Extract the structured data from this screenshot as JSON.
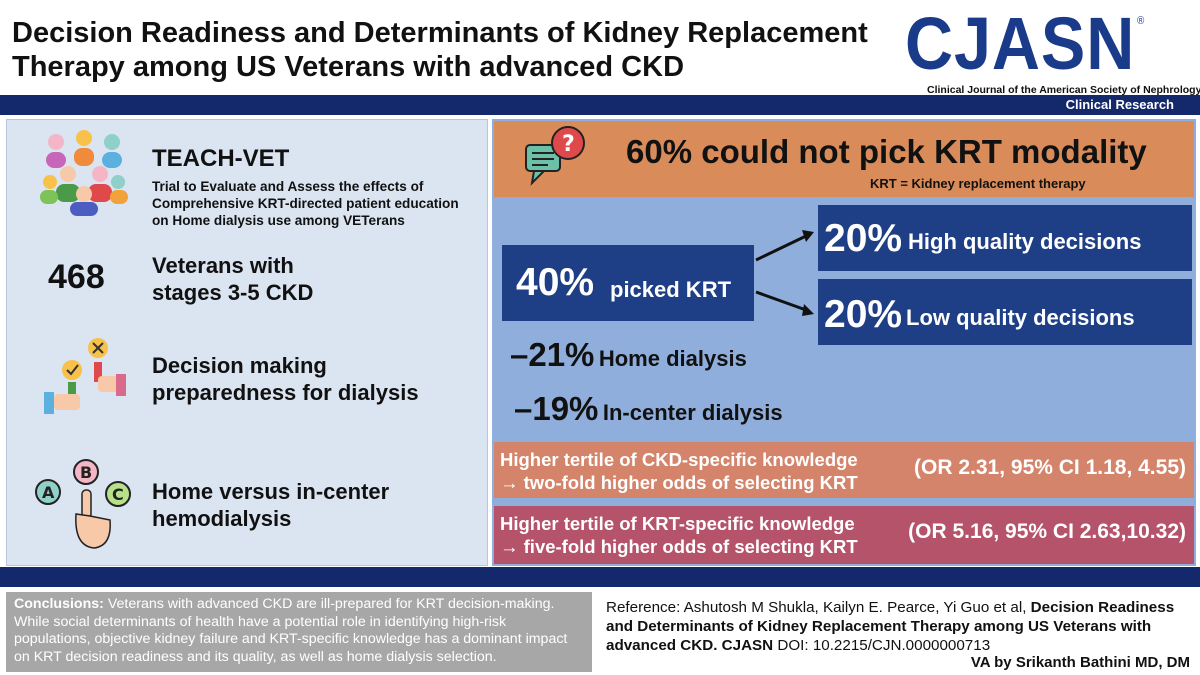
{
  "header": {
    "title_line1": "Decision Readiness and Determinants of Kidney Replacement",
    "title_line2": "Therapy among US Veterans with advanced CKD",
    "logo": "CJASN",
    "logo_reg": "®",
    "logo_subtitle": "Clinical Journal of the American Society of Nephrology",
    "section": "Clinical Research"
  },
  "left": {
    "study_name": "TEACH-VET",
    "study_desc_1": "Trial to Evaluate and Assess the effects of",
    "study_desc_2": "Comprehensive KRT-directed patient education",
    "study_desc_3": "on Home dialysis use among VETerans",
    "count": "468",
    "count_label_1": "Veterans with",
    "count_label_2": "stages 3-5 CKD",
    "outcome_1": "Decision making",
    "outcome_2": "preparedness for dialysis",
    "compare_1": "Home versus in-center",
    "compare_2": "hemodialysis",
    "icon_names": [
      "group-icon",
      "choice-hands-icon",
      "abc-choice-icon"
    ]
  },
  "right": {
    "headline_pct": "60%",
    "headline_text": "could not pick KRT modality",
    "abbrev_note": "KRT = Kidney replacement therapy",
    "picked_pct": "40%",
    "picked_text": "picked KRT",
    "high_pct": "20%",
    "high_text": "High quality decisions",
    "low_pct": "20%",
    "low_text": "Low quality decisions",
    "home_pct": "–21%",
    "home_text": "Home dialysis",
    "center_pct": "–19%",
    "center_text": "In-center dialysis",
    "ckd_line1": "Higher tertile of CKD-specific knowledge",
    "ckd_line2": "→ two-fold higher odds of selecting KRT",
    "ckd_or": "(OR 2.31, 95% CI 1.18, 4.55)",
    "krt_line1": "Higher tertile of KRT-specific knowledge",
    "krt_line2": "→ five-fold higher odds of selecting KRT",
    "krt_or": "(OR 5.16, 95% CI 2.63,10.32)",
    "colors": {
      "orange": "#d98c5a",
      "navy": "#1e3e86",
      "light_blue": "#8faedc",
      "salmon": "#d4846a",
      "rose": "#b5536b"
    }
  },
  "footer": {
    "conclusions_label": "Conclusions:",
    "conclusions_text": "Veterans with advanced CKD are ill-prepared for KRT decision-making. While social determinants of health have a potential role in identifying high-risk populations, objective kidney failure and KRT-specific knowledge has a dominant impact on KRT decision readiness and its quality, as well as home dialysis selection.",
    "reference_prefix": "Reference: Ashutosh M Shukla, Kailyn E. Pearce, Yi Guo et al,",
    "reference_title": "Decision Readiness and Determinants of Kidney Replacement Therapy among US Veterans with advanced CKD.",
    "reference_journal": "CJASN",
    "reference_doi": "DOI: 10.2215/CJN.0000000713",
    "credit": "VA by Srikanth Bathini MD, DM"
  }
}
